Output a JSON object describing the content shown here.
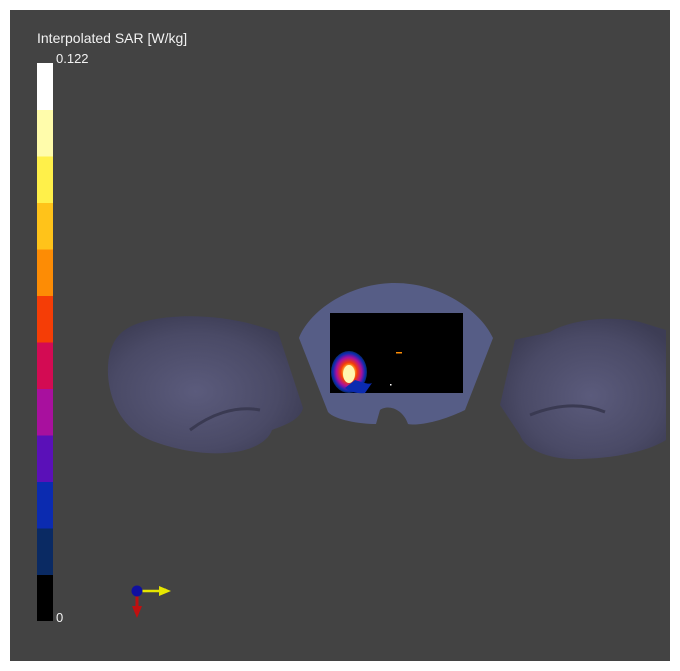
{
  "legend": {
    "title": "Interpolated SAR [W/kg]",
    "max_label": "0.122",
    "min_label": "0",
    "colors": [
      "#000000",
      "#0a2a63",
      "#0b2bb0",
      "#5a10b8",
      "#a8109e",
      "#d30b53",
      "#f53d06",
      "#fd8c05",
      "#ffc31a",
      "#fff04a",
      "#fffcab",
      "#ffffff"
    ]
  },
  "model": {
    "body_color": "#4f4f6f",
    "phantom_color": "#565d86",
    "panel_color": "#000000"
  },
  "orientation": {
    "x_color": "#e6e600",
    "y_color": "#1010a0",
    "z_color": "#c01010"
  }
}
